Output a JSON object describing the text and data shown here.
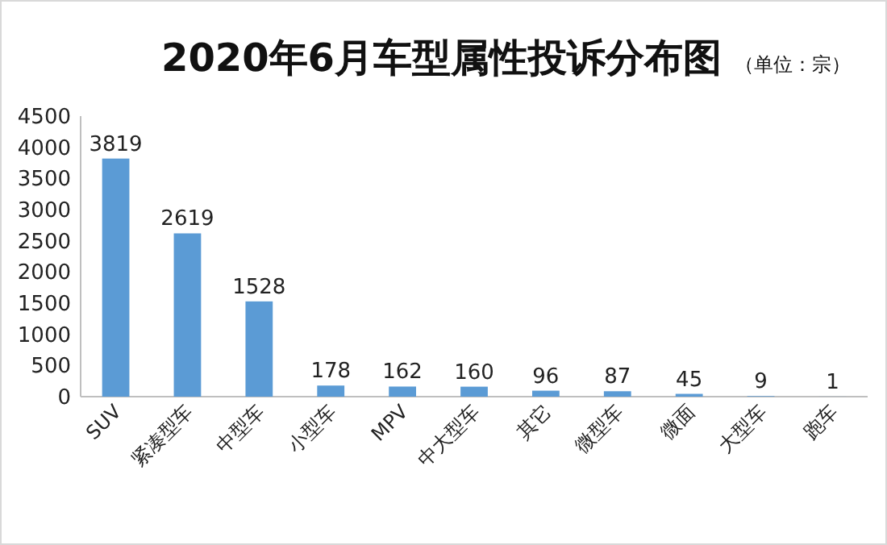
{
  "chart_data": {
    "type": "bar",
    "title": "2020年6月车型属性投诉分布图",
    "subtitle": "（单位：宗）",
    "categories": [
      "SUV",
      "紧凑型车",
      "中型车",
      "小型车",
      "MPV",
      "中大型车",
      "其它",
      "微型车",
      "微面",
      "大型车",
      "跑车"
    ],
    "values": [
      3819,
      2619,
      1528,
      178,
      162,
      160,
      96,
      87,
      45,
      9,
      1
    ],
    "color": "#5b9bd5",
    "ylim": [
      0,
      4500
    ],
    "yticks": [
      0,
      500,
      1000,
      1500,
      2000,
      2500,
      3000,
      3500,
      4000,
      4500
    ],
    "data_labels": true
  }
}
